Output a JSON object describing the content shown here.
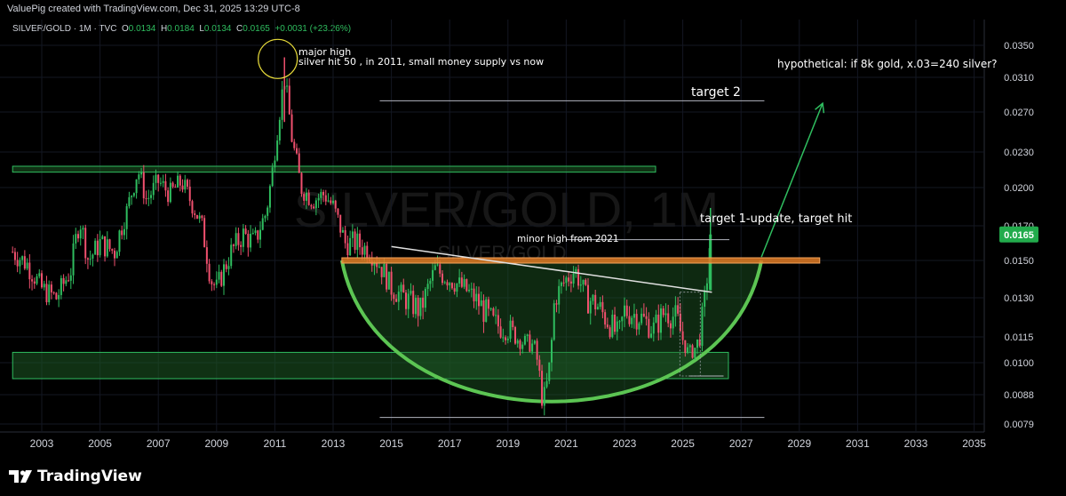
{
  "header": {
    "credit": "ValuePig created with TradingView.com, Dec 31, 2025 13:29 UTC-8",
    "symbol": "SILVER/GOLD · 1M · TVC",
    "ohlc": {
      "o_label": "O",
      "o": "0.0134",
      "h_label": "H",
      "h": "0.0184",
      "l_label": "L",
      "l": "0.0134",
      "c_label": "C",
      "c": "0.0165",
      "change": "+0.0031 (+23.26%)"
    }
  },
  "watermark": {
    "main": "SILVER/GOLD, 1M",
    "sub": "SILVER/GOLD"
  },
  "footer": {
    "brand": "TradingView"
  },
  "colors": {
    "up": "#2fbd5f",
    "down": "#f0506e",
    "accent": "#22ab4c",
    "fill": "#1e5a25",
    "bowl": "#5cc553",
    "resistance": "#e07b24"
  },
  "chart_data": {
    "type": "candlestick",
    "title": "SILVER/GOLD",
    "interval": "1M",
    "ylim": [
      0.0075,
      0.037
    ],
    "xlim": [
      2001.8,
      2036.0
    ],
    "x_ticks": [
      {
        "x": 2003,
        "label": "2003"
      },
      {
        "x": 2005,
        "label": "2005"
      },
      {
        "x": 2007,
        "label": "2007"
      },
      {
        "x": 2009,
        "label": "2009"
      },
      {
        "x": 2011,
        "label": "2011"
      },
      {
        "x": 2013,
        "label": "2013"
      },
      {
        "x": 2015,
        "label": "2015"
      },
      {
        "x": 2017,
        "label": "2017"
      },
      {
        "x": 2019,
        "label": "2019"
      },
      {
        "x": 2021,
        "label": "2021"
      },
      {
        "x": 2023,
        "label": "2023"
      },
      {
        "x": 2025,
        "label": "2025"
      },
      {
        "x": 2027,
        "label": "2027"
      },
      {
        "x": 2029,
        "label": "2029"
      },
      {
        "x": 2031,
        "label": "2031"
      },
      {
        "x": 2033,
        "label": "2033"
      },
      {
        "x": 2035,
        "label": "2035"
      }
    ],
    "y_ticks": [
      {
        "v": 0.035,
        "label": "0.0350"
      },
      {
        "v": 0.031,
        "label": "0.0310"
      },
      {
        "v": 0.027,
        "label": "0.0270"
      },
      {
        "v": 0.023,
        "label": "0.0230"
      },
      {
        "v": 0.02,
        "label": "0.0200"
      },
      {
        "v": 0.017,
        "label": "0.0170"
      },
      {
        "v": 0.015,
        "label": "0.0150"
      },
      {
        "v": 0.013,
        "label": "0.0130"
      },
      {
        "v": 0.0115,
        "label": "0.0115"
      },
      {
        "v": 0.01,
        "label": "0.0100"
      },
      {
        "v": 0.0088,
        "label": "0.0088"
      },
      {
        "v": 0.0079,
        "label": "0.0079"
      }
    ],
    "last_price": {
      "v": 0.0165,
      "label": "0.0165"
    },
    "price_path": [
      [
        2002.0,
        0.0155
      ],
      [
        2002.5,
        0.0148
      ],
      [
        2003.0,
        0.0135
      ],
      [
        2003.5,
        0.013
      ],
      [
        2004.0,
        0.0145
      ],
      [
        2004.3,
        0.0175
      ],
      [
        2004.6,
        0.015
      ],
      [
        2005.0,
        0.016
      ],
      [
        2005.5,
        0.0155
      ],
      [
        2005.9,
        0.018
      ],
      [
        2006.3,
        0.0215
      ],
      [
        2006.6,
        0.019
      ],
      [
        2007.0,
        0.0205
      ],
      [
        2007.4,
        0.0195
      ],
      [
        2007.8,
        0.0205
      ],
      [
        2008.2,
        0.0185
      ],
      [
        2008.5,
        0.017
      ],
      [
        2008.8,
        0.014
      ],
      [
        2009.0,
        0.0135
      ],
      [
        2009.5,
        0.0155
      ],
      [
        2009.9,
        0.0165
      ],
      [
        2010.3,
        0.016
      ],
      [
        2010.7,
        0.018
      ],
      [
        2010.9,
        0.021
      ],
      [
        2011.2,
        0.028
      ],
      [
        2011.33,
        0.031
      ],
      [
        2011.6,
        0.024
      ],
      [
        2011.9,
        0.02
      ],
      [
        2012.3,
        0.019
      ],
      [
        2012.7,
        0.0195
      ],
      [
        2013.0,
        0.0185
      ],
      [
        2013.4,
        0.016
      ],
      [
        2013.8,
        0.016
      ],
      [
        2014.3,
        0.0155
      ],
      [
        2014.7,
        0.0145
      ],
      [
        2015.0,
        0.0135
      ],
      [
        2015.5,
        0.013
      ],
      [
        2016.0,
        0.0125
      ],
      [
        2016.5,
        0.0145
      ],
      [
        2017.0,
        0.014
      ],
      [
        2017.5,
        0.0135
      ],
      [
        2018.0,
        0.0128
      ],
      [
        2018.5,
        0.012
      ],
      [
        2019.0,
        0.0118
      ],
      [
        2019.5,
        0.0112
      ],
      [
        2019.9,
        0.011
      ],
      [
        2020.2,
        0.0085
      ],
      [
        2020.4,
        0.0095
      ],
      [
        2020.6,
        0.013
      ],
      [
        2021.0,
        0.014
      ],
      [
        2021.3,
        0.0145
      ],
      [
        2021.7,
        0.013
      ],
      [
        2022.0,
        0.0128
      ],
      [
        2022.5,
        0.012
      ],
      [
        2022.8,
        0.0115
      ],
      [
        2023.0,
        0.0125
      ],
      [
        2023.5,
        0.0123
      ],
      [
        2024.0,
        0.0118
      ],
      [
        2024.4,
        0.0125
      ],
      [
        2024.8,
        0.0122
      ],
      [
        2025.2,
        0.0105
      ],
      [
        2025.4,
        0.0108
      ],
      [
        2025.6,
        0.0115
      ],
      [
        2025.8,
        0.0134
      ],
      [
        2025.95,
        0.0165
      ]
    ],
    "zones": [
      {
        "x0": 2002.0,
        "x1": 2031.0,
        "y0": 0.0094,
        "y1": 0.0106,
        "color": "#1e5a25"
      },
      {
        "x0": 2002.0,
        "x1": 2031.0,
        "y0": 0.0213,
        "y1": 0.0218,
        "color": "#1e5a25"
      }
    ],
    "lines": [
      {
        "name": "resistance",
        "x0": 2013.3,
        "x1": 2029.7,
        "y": 0.015,
        "color": "#e07b24",
        "width": 6
      },
      {
        "name": "target-2",
        "x0": 2014.6,
        "x1": 2027.8,
        "y": 0.0283,
        "color": "#b2b5be",
        "width": 1
      },
      {
        "name": "minor-high",
        "x0": 2021.0,
        "x1": 2026.6,
        "y": 0.0162,
        "color": "#b2b5be",
        "width": 1
      },
      {
        "name": "bottom",
        "x0": 2014.6,
        "x1": 2027.8,
        "y": 0.0081,
        "color": "#b2b5be",
        "width": 1
      },
      {
        "name": "support-short",
        "x0": 2025.2,
        "x1": 2026.4,
        "y": 0.0095,
        "color": "#b2b5be",
        "width": 1
      }
    ],
    "trendline": {
      "x0": 2015.0,
      "y0": 0.0158,
      "x1": 2026.0,
      "y1": 0.0133,
      "color": "#e0e0e0"
    },
    "bowl": {
      "x0": 2013.3,
      "x1": 2027.7,
      "y_top": 0.015,
      "y_bottom": 0.0081,
      "color": "#5cc553"
    },
    "arrow": {
      "x0": 2027.7,
      "y0": 0.0152,
      "x1": 2029.8,
      "y1": 0.028,
      "color": "#2fbd5f"
    },
    "circle": {
      "x": 2011.1,
      "y": 0.0333,
      "label": "major-high-circle"
    },
    "annotations": {
      "major_high_1": "major high",
      "major_high_2": "silver hit 50 , in 2011, small money supply vs now",
      "target2": "target 2",
      "hypothetical": "hypothetical: if 8k gold, x.03=240 silver?",
      "target1": "target 1-update, target hit",
      "minor_high": "minor high from 2021"
    }
  }
}
